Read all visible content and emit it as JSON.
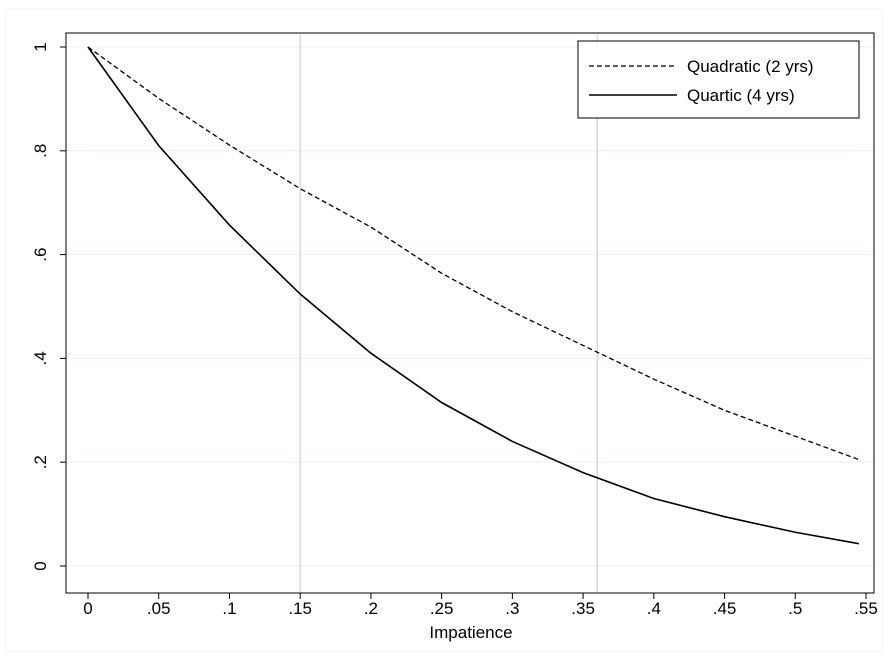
{
  "chart_data": {
    "type": "line",
    "title": "",
    "xlabel": "Impatience",
    "ylabel": "",
    "xlim": [
      0,
      0.55
    ],
    "ylim": [
      0,
      1
    ],
    "x_ticks": [
      0,
      0.05,
      0.1,
      0.15,
      0.2,
      0.25,
      0.3,
      0.35,
      0.4,
      0.45,
      0.5,
      0.55
    ],
    "x_tick_labels": [
      "0",
      ".05",
      ".1",
      ".15",
      ".2",
      ".25",
      ".3",
      ".35",
      ".4",
      ".45",
      ".5",
      ".55"
    ],
    "y_ticks": [
      0,
      0.2,
      0.4,
      0.6,
      0.8,
      1
    ],
    "y_tick_labels": [
      "0",
      ".2",
      ".4",
      ".6",
      ".8",
      "1"
    ],
    "reference_lines_x": [
      0.15,
      0.36
    ],
    "grid": true,
    "legend_position": "top-right",
    "x": [
      0,
      0.05,
      0.1,
      0.15,
      0.2,
      0.25,
      0.3,
      0.35,
      0.4,
      0.45,
      0.5,
      0.545
    ],
    "series": [
      {
        "name": "Quadratic (2 yrs)",
        "style": "dashed",
        "color": "#000000",
        "values": [
          1.0,
          0.901,
          0.811,
          0.727,
          0.653,
          0.564,
          0.49,
          0.425,
          0.36,
          0.3,
          0.25,
          0.205
        ]
      },
      {
        "name": "Quartic (4 yrs)",
        "style": "solid",
        "color": "#000000",
        "values": [
          1.0,
          0.81,
          0.657,
          0.524,
          0.41,
          0.315,
          0.24,
          0.18,
          0.13,
          0.095,
          0.065,
          0.043
        ]
      }
    ]
  }
}
